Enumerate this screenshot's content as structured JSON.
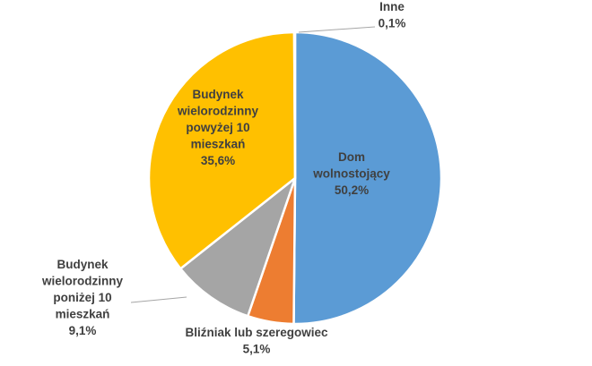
{
  "chart_data": {
    "type": "pie",
    "title": "",
    "slices": [
      {
        "label": "Dom wolnostojący",
        "label_lines": [
          "Dom",
          "wolnostojący"
        ],
        "value": 50.2,
        "value_label": "50,2%",
        "color": "#5B9BD5"
      },
      {
        "label": "Bliźniak lub szeregowiec",
        "label_lines": [
          "Bliźniak lub szeregowiec"
        ],
        "value": 5.1,
        "value_label": "5,1%",
        "color": "#ED7D31"
      },
      {
        "label": "Budynek wielorodzinny poniżej 10 mieszkań",
        "label_lines": [
          "Budynek",
          "wielorodzinny",
          "poniżej 10",
          "mieszkań"
        ],
        "value": 9.1,
        "value_label": "9,1%",
        "color": "#A5A5A5"
      },
      {
        "label": "Budynek wielorodzinny powyżej 10 mieszkań",
        "label_lines": [
          "Budynek",
          "wielorodzinny",
          "powyżej 10",
          "mieszkań"
        ],
        "value": 35.6,
        "value_label": "35,6%",
        "color": "#FFC000"
      },
      {
        "label": "Inne",
        "label_lines": [
          "Inne"
        ],
        "value": 0.1,
        "value_label": "0,1%",
        "color": "#4472C4"
      }
    ],
    "start": "12 o'clock",
    "direction": "clockwise",
    "legend": "none",
    "data_labels": true
  }
}
